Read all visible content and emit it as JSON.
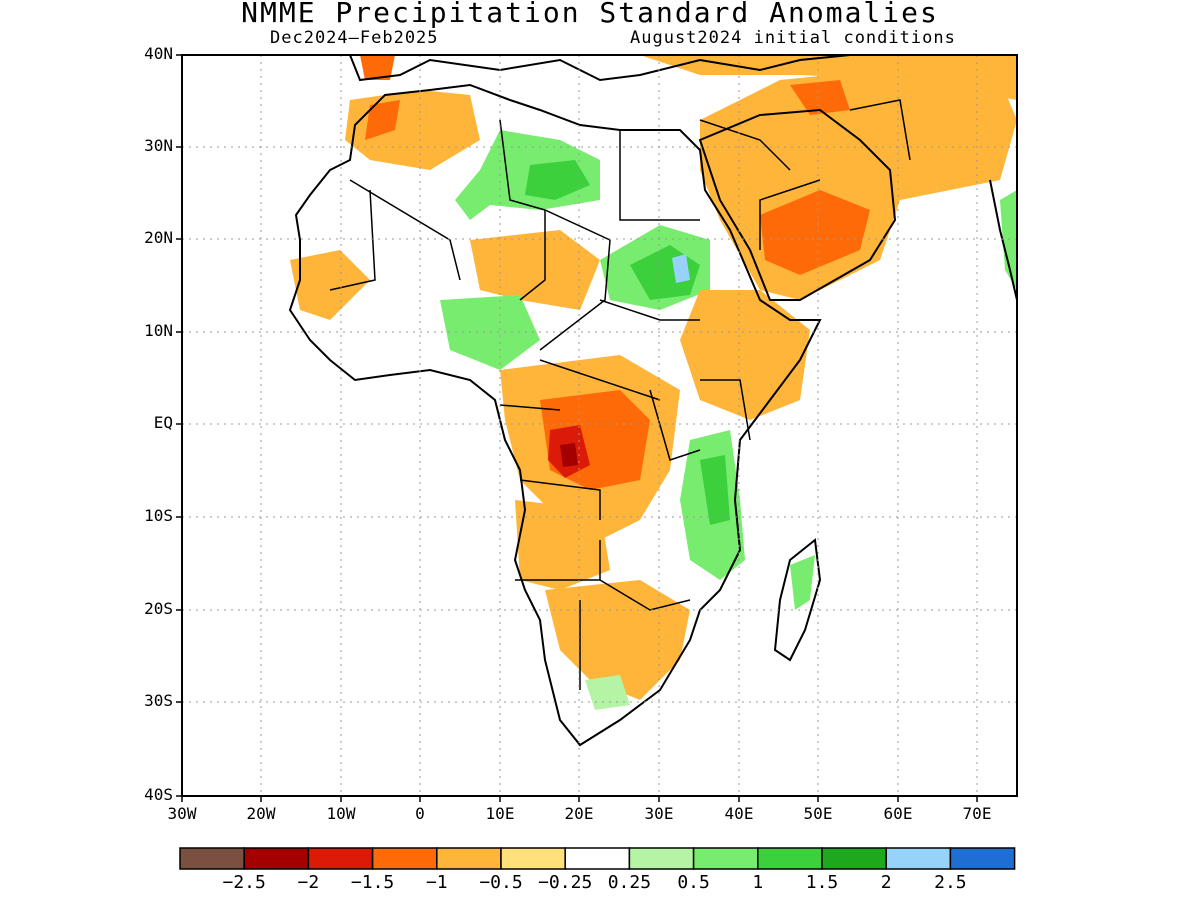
{
  "title": "NMME Precipitation Standard Anomalies",
  "season": "Dec2024–Feb2025",
  "init": "August2024 initial conditions",
  "axes": {
    "lat_labels": [
      "40N",
      "30N",
      "20N",
      "10N",
      "EQ",
      "10S",
      "20S",
      "30S",
      "40S"
    ],
    "lon_labels": [
      "30W",
      "20W",
      "10W",
      "0",
      "10E",
      "20E",
      "30E",
      "40E",
      "50E",
      "60E",
      "70E"
    ],
    "grid": true
  },
  "colorbar": {
    "colors": [
      "#7a5040",
      "#a40000",
      "#dc1a08",
      "#ff6a08",
      "#ffb43a",
      "#ffe07a",
      "#ffffff",
      "#b4f4a4",
      "#78ec6e",
      "#3cd03c",
      "#1ea81e",
      "#96d2fa",
      "#1e6ed4"
    ],
    "labels": [
      "−2.5",
      "−2",
      "−1.5",
      "−1",
      "−0.5",
      "−0.25",
      "0.25",
      "0.5",
      "1",
      "1.5",
      "2",
      "2.5"
    ]
  },
  "regions": [
    {
      "name": "sahara-west-dry",
      "color": "#ffb43a"
    },
    {
      "name": "libya-wet",
      "color": "#78ec6e"
    },
    {
      "name": "sudan-wet",
      "color": "#3cd03c"
    },
    {
      "name": "sudan-wet-core",
      "color": "#96d2fa"
    },
    {
      "name": "arabia-dry",
      "color": "#ff6a08"
    },
    {
      "name": "congo-dry",
      "color": "#ff6a08"
    },
    {
      "name": "congo-dry-core",
      "color": "#a40000"
    },
    {
      "name": "east-africa-wet",
      "color": "#3cd03c"
    },
    {
      "name": "southern-africa-dry",
      "color": "#ffb43a"
    },
    {
      "name": "ethiopia-dry",
      "color": "#ffb43a"
    }
  ]
}
